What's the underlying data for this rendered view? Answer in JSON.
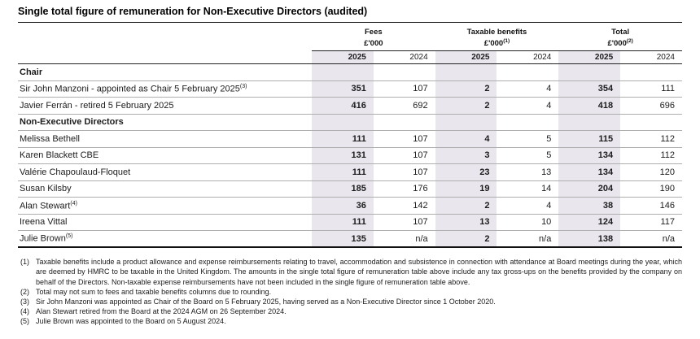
{
  "title": "Single total figure of remuneration for Non-Executive Directors (audited)",
  "colors": {
    "year_2025_shade": "#e9e6ee",
    "rule_dark": "#111111",
    "rule_gray": "#aeaeae"
  },
  "table": {
    "column_groups": [
      {
        "label": "Fees",
        "unit": "£'000",
        "sup": ""
      },
      {
        "label": "Taxable benefits",
        "unit": "£'000",
        "sup": "(1)"
      },
      {
        "label": "Total",
        "unit": "£'000",
        "sup": "(2)"
      }
    ],
    "year_columns": [
      "2025",
      "2024",
      "2025",
      "2024",
      "2025",
      "2024"
    ],
    "rows": [
      {
        "type": "section",
        "label": "Chair"
      },
      {
        "type": "row",
        "label": "Sir John Manzoni - appointed as Chair 5 February 2025",
        "sup": "(3)",
        "values": [
          "351",
          "107",
          "2",
          "4",
          "354",
          "111"
        ]
      },
      {
        "type": "row",
        "label": "Javier Ferrán - retired 5 February 2025",
        "sup": "",
        "values": [
          "416",
          "692",
          "2",
          "4",
          "418",
          "696"
        ]
      },
      {
        "type": "section",
        "label": "Non-Executive Directors"
      },
      {
        "type": "row",
        "label": "Melissa Bethell",
        "sup": "",
        "values": [
          "111",
          "107",
          "4",
          "5",
          "115",
          "112"
        ]
      },
      {
        "type": "row",
        "label": "Karen Blackett CBE",
        "sup": "",
        "values": [
          "131",
          "107",
          "3",
          "5",
          "134",
          "112"
        ]
      },
      {
        "type": "row",
        "label": "Valérie Chapoulaud-Floquet",
        "sup": "",
        "values": [
          "111",
          "107",
          "23",
          "13",
          "134",
          "120"
        ]
      },
      {
        "type": "row",
        "label": "Susan Kilsby",
        "sup": "",
        "values": [
          "185",
          "176",
          "19",
          "14",
          "204",
          "190"
        ]
      },
      {
        "type": "row",
        "label": "Alan Stewart",
        "sup": "(4)",
        "values": [
          "36",
          "142",
          "2",
          "4",
          "38",
          "146"
        ]
      },
      {
        "type": "row",
        "label": "Ireena Vittal",
        "sup": "",
        "values": [
          "111",
          "107",
          "13",
          "10",
          "124",
          "117"
        ]
      },
      {
        "type": "row",
        "label": "Julie Brown",
        "sup": "(5)",
        "values": [
          "135",
          "n/a",
          "2",
          "n/a",
          "138",
          "n/a"
        ]
      }
    ]
  },
  "footnotes": [
    {
      "num": "(1)",
      "text": "Taxable benefits include a product allowance and expense reimbursements relating to travel, accommodation and subsistence in connection with attendance at Board meetings during the year, which are deemed by HMRC to be taxable in the United Kingdom. The amounts in the single total figure of remuneration table above include any tax gross-ups on the benefits provided by the company on behalf of the Directors. Non-taxable expense reimbursements have not been included in the single figure of remuneration table above."
    },
    {
      "num": "(2)",
      "text": "Total may not sum to fees and taxable benefits columns due to rounding."
    },
    {
      "num": "(3)",
      "text": "Sir John Manzoni was appointed as Chair of the Board on 5 February 2025, having served as a Non-Executive Director since 1 October 2020."
    },
    {
      "num": "(4)",
      "text": "Alan Stewart retired from the Board at the 2024 AGM on 26 September 2024."
    },
    {
      "num": "(5)",
      "text": "Julie Brown was appointed to the Board on 5 August 2024."
    }
  ]
}
